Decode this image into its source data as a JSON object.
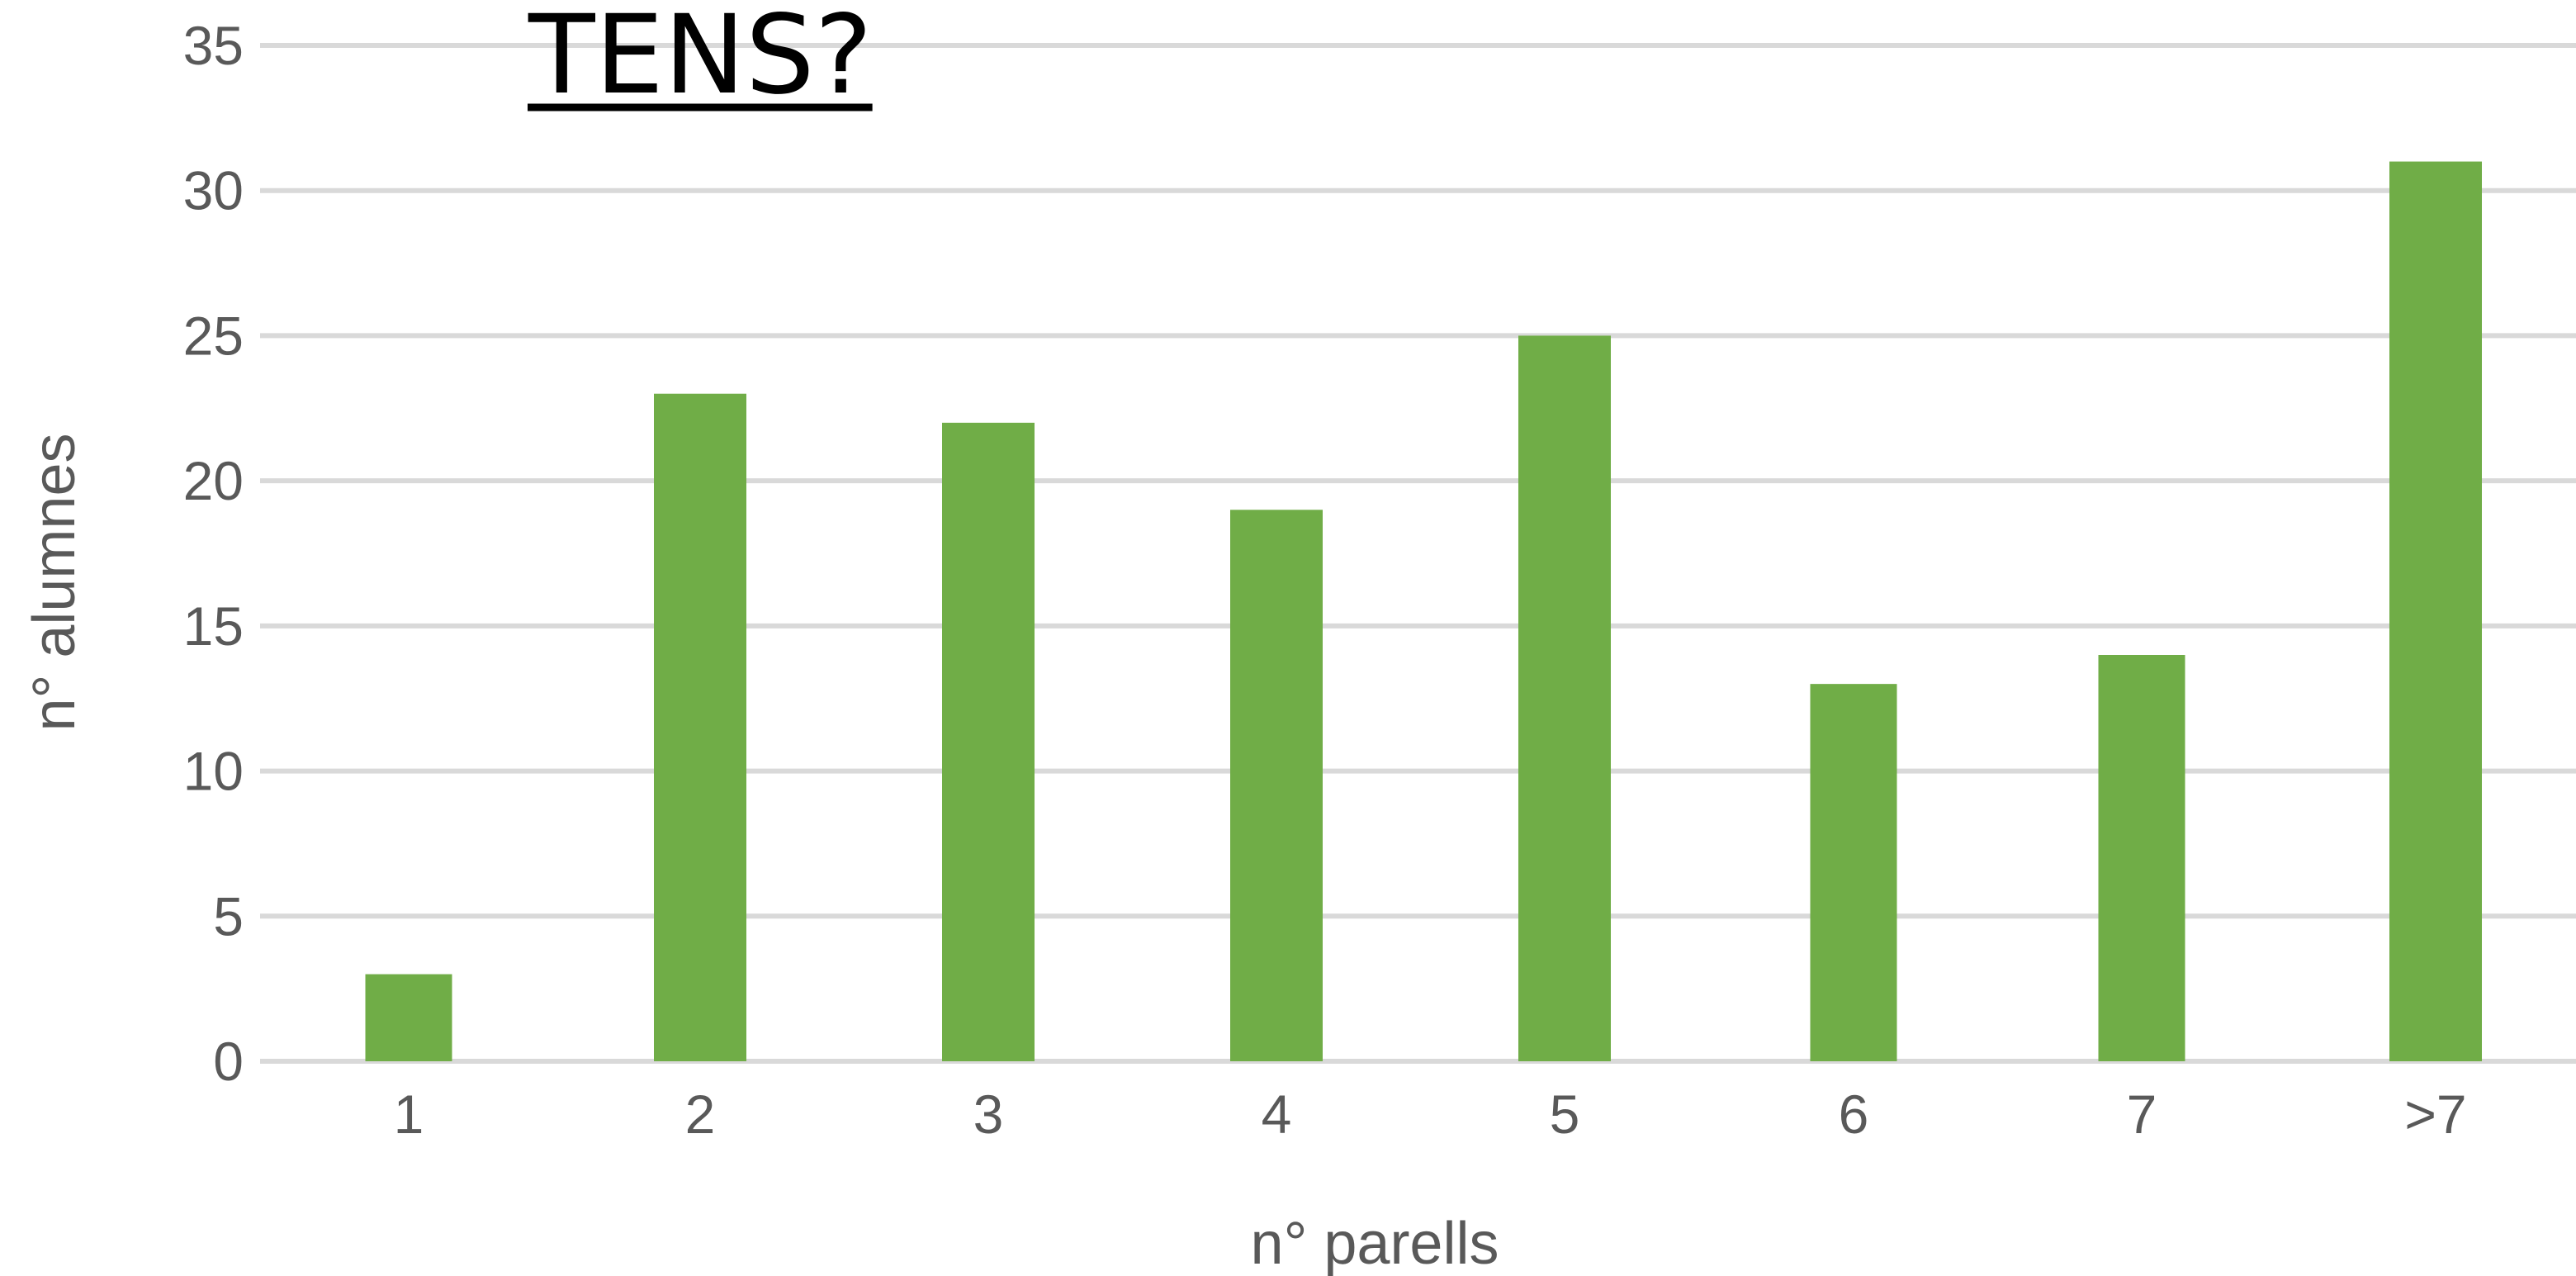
{
  "chart_data": {
    "type": "bar",
    "title": "TENS?",
    "xlabel": "n° parells",
    "ylabel": "n° alumnes",
    "categories": [
      "1",
      "2",
      "3",
      "4",
      "5",
      "6",
      "7",
      ">7"
    ],
    "values": [
      3,
      23,
      22,
      19,
      25,
      13,
      14,
      31
    ],
    "ylim": [
      0,
      35
    ],
    "yticks": [
      "0",
      "5",
      "10",
      "15",
      "20",
      "25",
      "30",
      "35"
    ],
    "grid": true,
    "legend": "none",
    "bar_color": "#70ad47",
    "grid_color": "#d9d9d9",
    "text_color": "#595959"
  }
}
